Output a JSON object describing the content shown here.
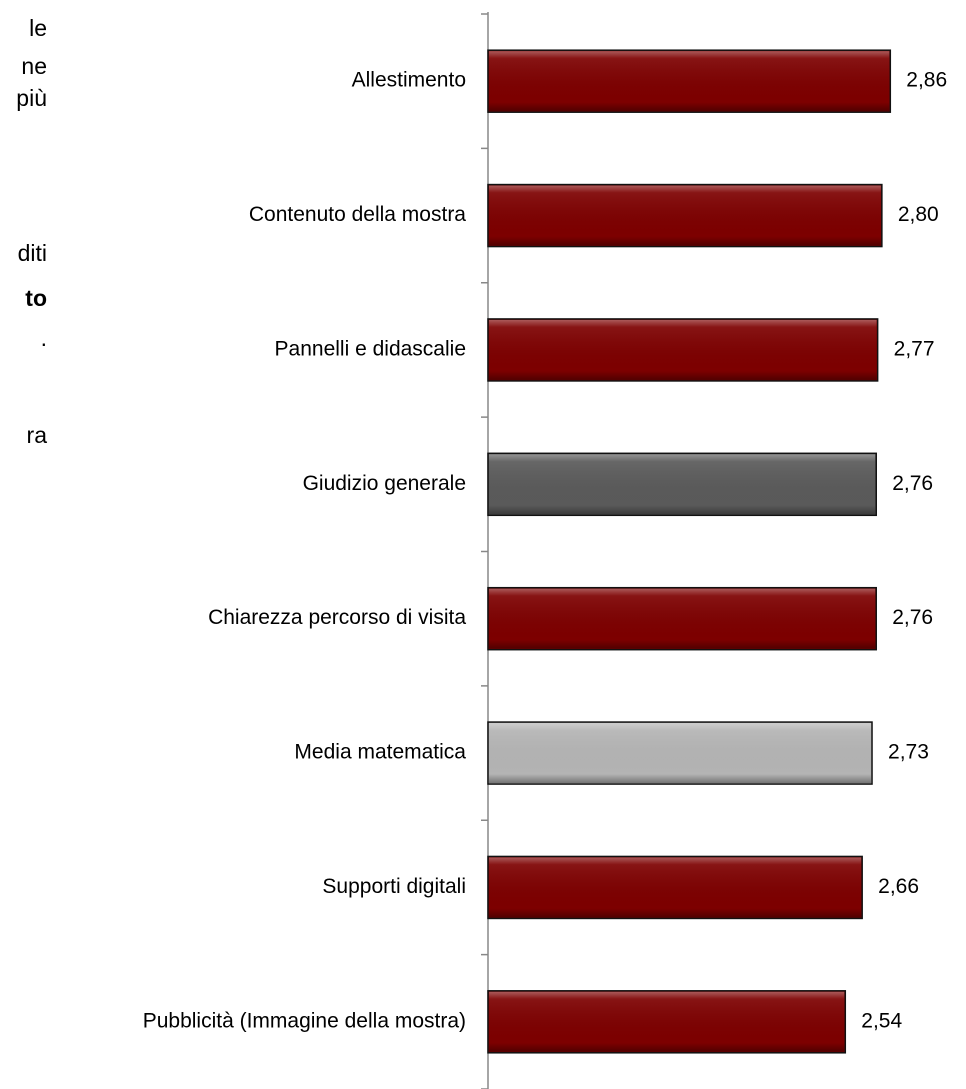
{
  "chart_data": {
    "type": "barh",
    "annotations": [
      "le",
      "ne",
      "più",
      "diti",
      "to",
      ".",
      "ra"
    ],
    "categories": [
      "Allestimento",
      "Contenuto della mostra",
      "Pannelli e didascalie",
      "Giudizio generale",
      "Chiarezza percorso di visita",
      "Media matematica",
      "Supporti digitali",
      "Pubblicità (Immagine della mostra)"
    ],
    "values": [
      2.86,
      2.8,
      2.77,
      2.76,
      2.76,
      2.73,
      2.66,
      2.54
    ],
    "value_labels": [
      "2,86",
      "2,80",
      "2,77",
      "2,76",
      "2,76",
      "2,73",
      "2,66",
      "2,54"
    ],
    "colors": [
      "#7d0000",
      "#7d0000",
      "#7d0000",
      "#5a5a5a",
      "#7d0000",
      "#b4b4b4",
      "#7d0000",
      "#7d0000"
    ],
    "xlim": [
      0,
      3
    ]
  }
}
